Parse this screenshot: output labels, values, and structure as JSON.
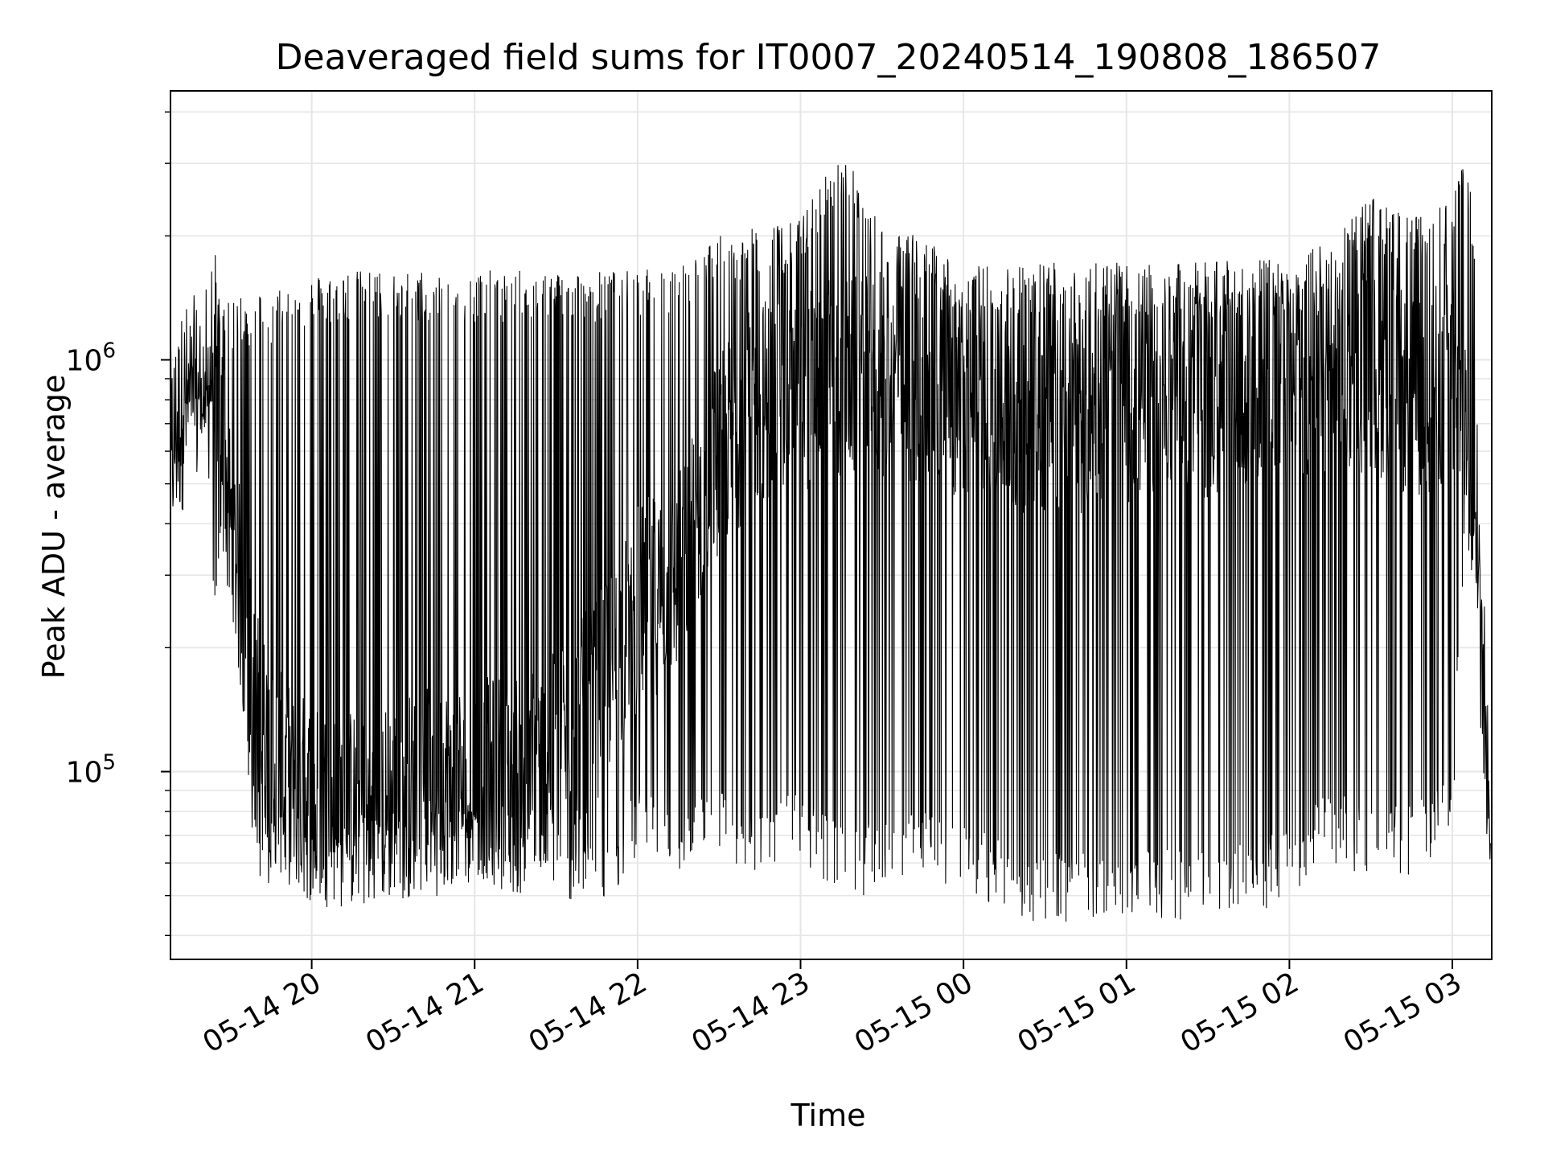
{
  "chart_data": {
    "type": "line",
    "title": "Deaveraged field sums for IT0007_20240514_190808_186507",
    "xlabel": "Time",
    "ylabel": "Peak ADU - average",
    "yscale": "log",
    "ylim": [
      35000,
      4500000
    ],
    "xlim": [
      "2024-05-14 19:08:00",
      "2024-05-15 03:14:30"
    ],
    "grid": true,
    "line_color": "#000000",
    "grid_color": "#e6e6e6",
    "x_ticks": [
      {
        "label": "05-14 20",
        "time": "2024-05-14 20:00:00"
      },
      {
        "label": "05-14 21",
        "time": "2024-05-14 21:00:00"
      },
      {
        "label": "05-14 22",
        "time": "2024-05-14 22:00:00"
      },
      {
        "label": "05-14 23",
        "time": "2024-05-14 23:00:00"
      },
      {
        "label": "05-15 00",
        "time": "2024-05-15 00:00:00"
      },
      {
        "label": "05-15 01",
        "time": "2024-05-15 01:00:00"
      },
      {
        "label": "05-15 02",
        "time": "2024-05-15 02:00:00"
      },
      {
        "label": "05-15 03",
        "time": "2024-05-15 03:00:00"
      }
    ],
    "y_ticks": [
      {
        "label": "10",
        "exp": "5",
        "value": 100000
      },
      {
        "label": "10",
        "exp": "6",
        "value": 1000000
      }
    ],
    "series": [
      {
        "x": [
          "2024-05-14 19:08:00",
          "2024-05-14 19:13:00",
          "2024-05-14 19:18:00",
          "2024-05-14 19:22:00",
          "2024-05-14 19:24:00",
          "2024-05-14 19:27:00",
          "2024-05-14 19:30:00",
          "2024-05-14 19:33:00",
          "2024-05-14 19:36:00",
          "2024-05-14 19:40:00",
          "2024-05-14 19:45:00",
          "2024-05-14 19:50:00",
          "2024-05-14 19:55:00",
          "2024-05-14 20:00:00",
          "2024-05-14 20:10:00",
          "2024-05-14 20:20:00",
          "2024-05-14 20:30:00",
          "2024-05-14 20:40:00",
          "2024-05-14 20:50:00",
          "2024-05-14 21:00:00",
          "2024-05-14 21:15:00",
          "2024-05-14 21:30:00",
          "2024-05-14 21:45:00",
          "2024-05-14 22:00:00",
          "2024-05-14 22:15:00",
          "2024-05-14 22:30:00",
          "2024-05-14 22:45:00",
          "2024-05-14 23:00:00",
          "2024-05-14 23:15:00",
          "2024-05-14 23:30:00",
          "2024-05-14 23:45:00",
          "2024-05-15 00:00:00",
          "2024-05-15 00:15:00",
          "2024-05-15 00:30:00",
          "2024-05-15 00:45:00",
          "2024-05-15 01:00:00",
          "2024-05-15 01:15:00",
          "2024-05-15 01:30:00",
          "2024-05-15 01:45:00",
          "2024-05-15 02:00:00",
          "2024-05-15 02:15:00",
          "2024-05-15 02:30:00",
          "2024-05-15 02:45:00",
          "2024-05-15 03:00:00",
          "2024-05-15 03:05:00",
          "2024-05-15 03:08:00",
          "2024-05-15 03:10:00",
          "2024-05-15 03:12:00",
          "2024-05-15 03:14:00"
        ],
        "baseline": [
          600000,
          780000,
          820000,
          870000,
          1100000,
          700000,
          400000,
          300000,
          200000,
          140000,
          110000,
          95000,
          90000,
          85000,
          82000,
          80000,
          85000,
          90000,
          95000,
          95000,
          100000,
          110000,
          150000,
          250000,
          300000,
          600000,
          800000,
          850000,
          900000,
          900000,
          850000,
          800000,
          750000,
          750000,
          750000,
          800000,
          800000,
          800000,
          850000,
          850000,
          900000,
          950000,
          800000,
          900000,
          700000,
          350000,
          250000,
          150000,
          60000
        ],
        "peaks": [
          600000,
          880000,
          920000,
          950000,
          1300000,
          1700000,
          1300000,
          1500000,
          1400000,
          1500000,
          1400000,
          1600000,
          1500000,
          1600000,
          1650000,
          1650000,
          1650000,
          1650000,
          1650000,
          1650000,
          1650000,
          1650000,
          1650000,
          1650000,
          1700000,
          2000000,
          2100000,
          2200000,
          3300000,
          2100000,
          2000000,
          1700000,
          1700000,
          1750000,
          1800000,
          1700000,
          1700000,
          1750000,
          1800000,
          1700000,
          2000000,
          2500000,
          2200000,
          2500000,
          3500000,
          2000000,
          400000,
          200000,
          70000
        ],
        "lows": [
          550000,
          650000,
          700000,
          600000,
          170000,
          300000,
          250000,
          200000,
          90000,
          55000,
          50000,
          55000,
          50000,
          48000,
          50000,
          48000,
          52000,
          48000,
          47000,
          55000,
          50000,
          48000,
          45000,
          60000,
          55000,
          60000,
          55000,
          60000,
          50000,
          50000,
          55000,
          52000,
          45000,
          42000,
          43000,
          45000,
          43000,
          45000,
          44000,
          50000,
          60000,
          55000,
          55000,
          65000,
          400000,
          300000,
          220000,
          130000,
          55000
        ]
      }
    ]
  }
}
